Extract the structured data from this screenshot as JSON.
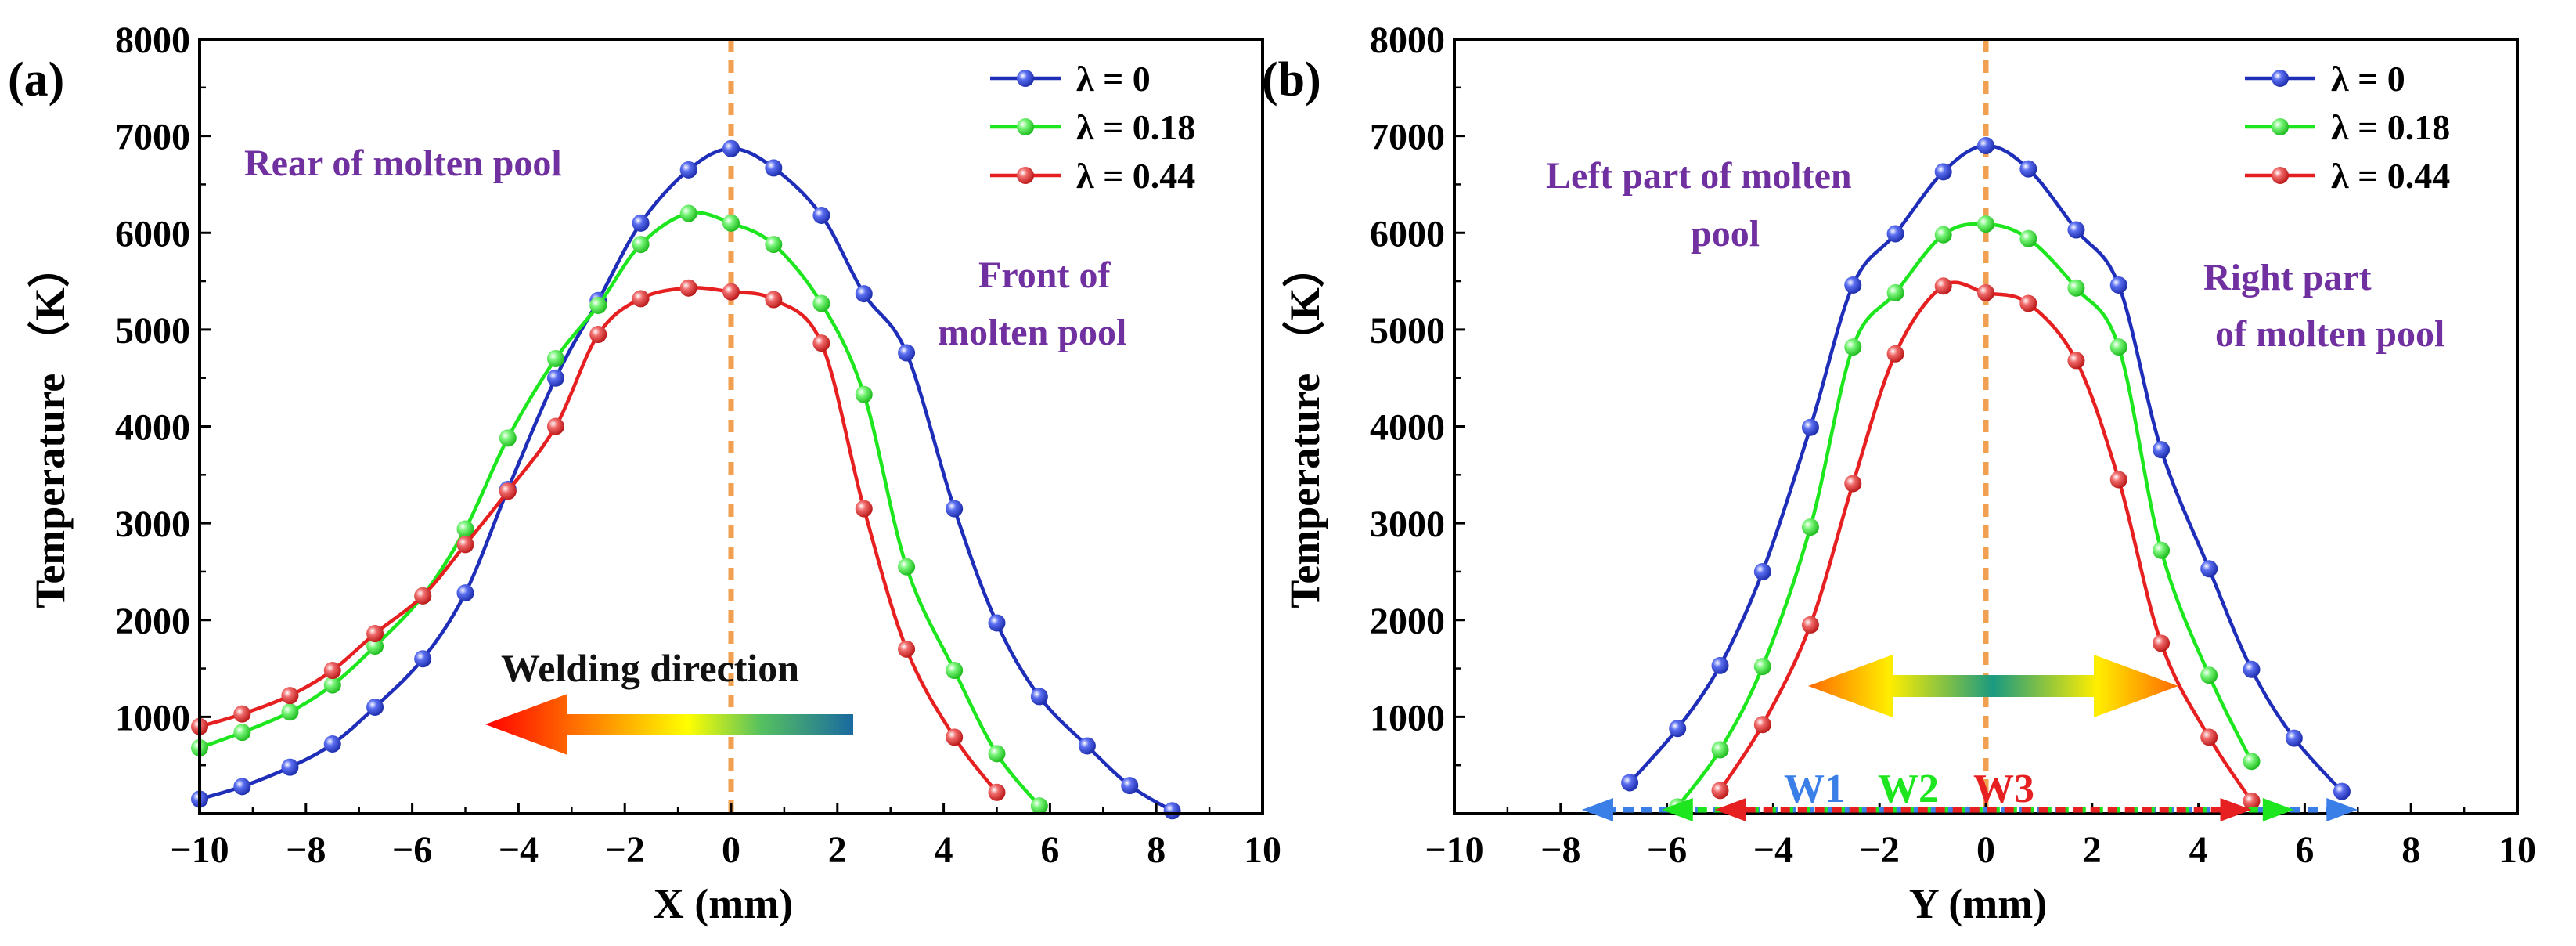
{
  "figure": {
    "panels": [
      "(a)",
      "(b)"
    ]
  },
  "chart_data": [
    {
      "type": "line",
      "panel_label": "(a)",
      "title": "",
      "xlabel": "X (mm)",
      "ylabel": "Temperature （K）",
      "xlim": [
        -10,
        10
      ],
      "ylim": [
        0,
        8000
      ],
      "xticks": [
        -10,
        -8,
        -6,
        -4,
        -2,
        0,
        2,
        4,
        6,
        8,
        10
      ],
      "yticks": [
        1000,
        2000,
        3000,
        4000,
        5000,
        6000,
        7000,
        8000
      ],
      "xtick_labels": [
        "−10",
        "−8",
        "−6",
        "−4",
        "−2",
        "0",
        "2",
        "4",
        "6",
        "8",
        "10"
      ],
      "ytick_labels": [
        "1000",
        "2000",
        "3000",
        "4000",
        "5000",
        "6000",
        "7000",
        "8000"
      ],
      "grid": false,
      "legend_position": "top-right",
      "series": [
        {
          "name": "λ = 0",
          "color": "#1f2eb8",
          "x": [
            -10,
            -9.2,
            -8.3,
            -7.5,
            -6.7,
            -5.8,
            -5.0,
            -4.2,
            -3.3,
            -2.5,
            -1.7,
            -0.8,
            0,
            0.8,
            1.7,
            2.5,
            3.3,
            4.2,
            5.0,
            5.8,
            6.7,
            7.5,
            8.3
          ],
          "y": [
            150,
            280,
            480,
            720,
            1100,
            1600,
            2280,
            3350,
            4500,
            5300,
            6100,
            6650,
            6870,
            6670,
            6180,
            5370,
            4760,
            3150,
            1970,
            1210,
            700,
            290,
            30
          ]
        },
        {
          "name": "λ = 0.18",
          "color": "#1ee61e",
          "x": [
            -10,
            -9.2,
            -8.3,
            -7.5,
            -6.7,
            -5.8,
            -5.0,
            -4.2,
            -3.3,
            -2.5,
            -1.7,
            -0.8,
            0,
            0.8,
            1.7,
            2.5,
            3.3,
            4.2,
            5.0,
            5.8
          ],
          "y": [
            680,
            840,
            1050,
            1330,
            1730,
            2250,
            2940,
            3880,
            4700,
            5250,
            5880,
            6200,
            6100,
            5880,
            5270,
            4330,
            2550,
            1480,
            620,
            80
          ]
        },
        {
          "name": "λ = 0.44",
          "color": "#e62020",
          "x": [
            -10,
            -9.2,
            -8.3,
            -7.5,
            -6.7,
            -5.8,
            -5.0,
            -4.2,
            -3.3,
            -2.5,
            -1.7,
            -0.8,
            0,
            0.8,
            1.7,
            2.5,
            3.3,
            4.2,
            5.0
          ],
          "y": [
            900,
            1030,
            1220,
            1480,
            1860,
            2250,
            2780,
            3330,
            4000,
            4950,
            5320,
            5430,
            5390,
            5310,
            4860,
            3150,
            1700,
            790,
            220
          ]
        }
      ],
      "annotations": [
        {
          "text": "Rear of molten pool",
          "color": "#7030a0"
        },
        {
          "text": "Front of",
          "color": "#7030a0"
        },
        {
          "text": "molten pool",
          "color": "#7030a0"
        },
        {
          "text": "Welding direction",
          "color": "#111111"
        }
      ]
    },
    {
      "type": "line",
      "panel_label": "(b)",
      "title": "",
      "xlabel": "Y (mm)",
      "ylabel": "Temperature （K）",
      "xlim": [
        -10,
        10
      ],
      "ylim": [
        0,
        8000
      ],
      "xticks": [
        -10,
        -8,
        -6,
        -4,
        -2,
        0,
        2,
        4,
        6,
        8,
        10
      ],
      "yticks": [
        1000,
        2000,
        3000,
        4000,
        5000,
        6000,
        7000,
        8000
      ],
      "xtick_labels": [
        "−10",
        "−8",
        "−6",
        "−4",
        "−2",
        "0",
        "2",
        "4",
        "6",
        "8",
        "10"
      ],
      "ytick_labels": [
        "1000",
        "2000",
        "3000",
        "4000",
        "5000",
        "6000",
        "7000",
        "8000"
      ],
      "grid": false,
      "legend_position": "top-right",
      "series": [
        {
          "name": "λ = 0",
          "color": "#1f2eb8",
          "x": [
            -6.7,
            -5.8,
            -5.0,
            -4.2,
            -3.3,
            -2.5,
            -1.7,
            -0.8,
            0,
            0.8,
            1.7,
            2.5,
            3.3,
            4.2,
            5.0,
            5.8,
            6.7
          ],
          "y": [
            320,
            880,
            1530,
            2500,
            3990,
            5460,
            5990,
            6630,
            6900,
            6660,
            6030,
            5460,
            3760,
            2530,
            1490,
            780,
            230
          ]
        },
        {
          "name": "λ = 0.18",
          "color": "#1ee61e",
          "x": [
            -5.8,
            -5.0,
            -4.2,
            -3.3,
            -2.5,
            -1.7,
            -0.8,
            0,
            0.8,
            1.7,
            2.5,
            3.3,
            4.2,
            5.0
          ],
          "y": [
            70,
            660,
            1520,
            2960,
            4820,
            5380,
            5980,
            6090,
            5940,
            5430,
            4820,
            2720,
            1430,
            540
          ]
        },
        {
          "name": "λ = 0.44",
          "color": "#e62020",
          "x": [
            -5.0,
            -4.2,
            -3.3,
            -2.5,
            -1.7,
            -0.8,
            0,
            0.8,
            1.7,
            2.5,
            3.3,
            4.2,
            5.0
          ],
          "y": [
            240,
            920,
            1950,
            3410,
            4750,
            5450,
            5380,
            5270,
            4680,
            3450,
            1760,
            790,
            130
          ]
        }
      ],
      "annotations": [
        {
          "text": "Left part of molten",
          "color": "#7030a0"
        },
        {
          "text": "pool",
          "color": "#7030a0"
        },
        {
          "text": "Right part",
          "color": "#7030a0"
        },
        {
          "text": "of molten pool",
          "color": "#7030a0"
        }
      ],
      "width_markers": [
        {
          "name": "W1",
          "color": "#3a7ee8",
          "x_from": -7.6,
          "x_to": 7.0
        },
        {
          "name": "W2",
          "color": "#1ee61e",
          "x_from": -6.1,
          "x_to": 5.8
        },
        {
          "name": "W3",
          "color": "#e62020",
          "x_from": -5.1,
          "x_to": 5.0
        }
      ]
    }
  ],
  "colors": {
    "center_line": "#f0a050",
    "axis": "#000000"
  }
}
